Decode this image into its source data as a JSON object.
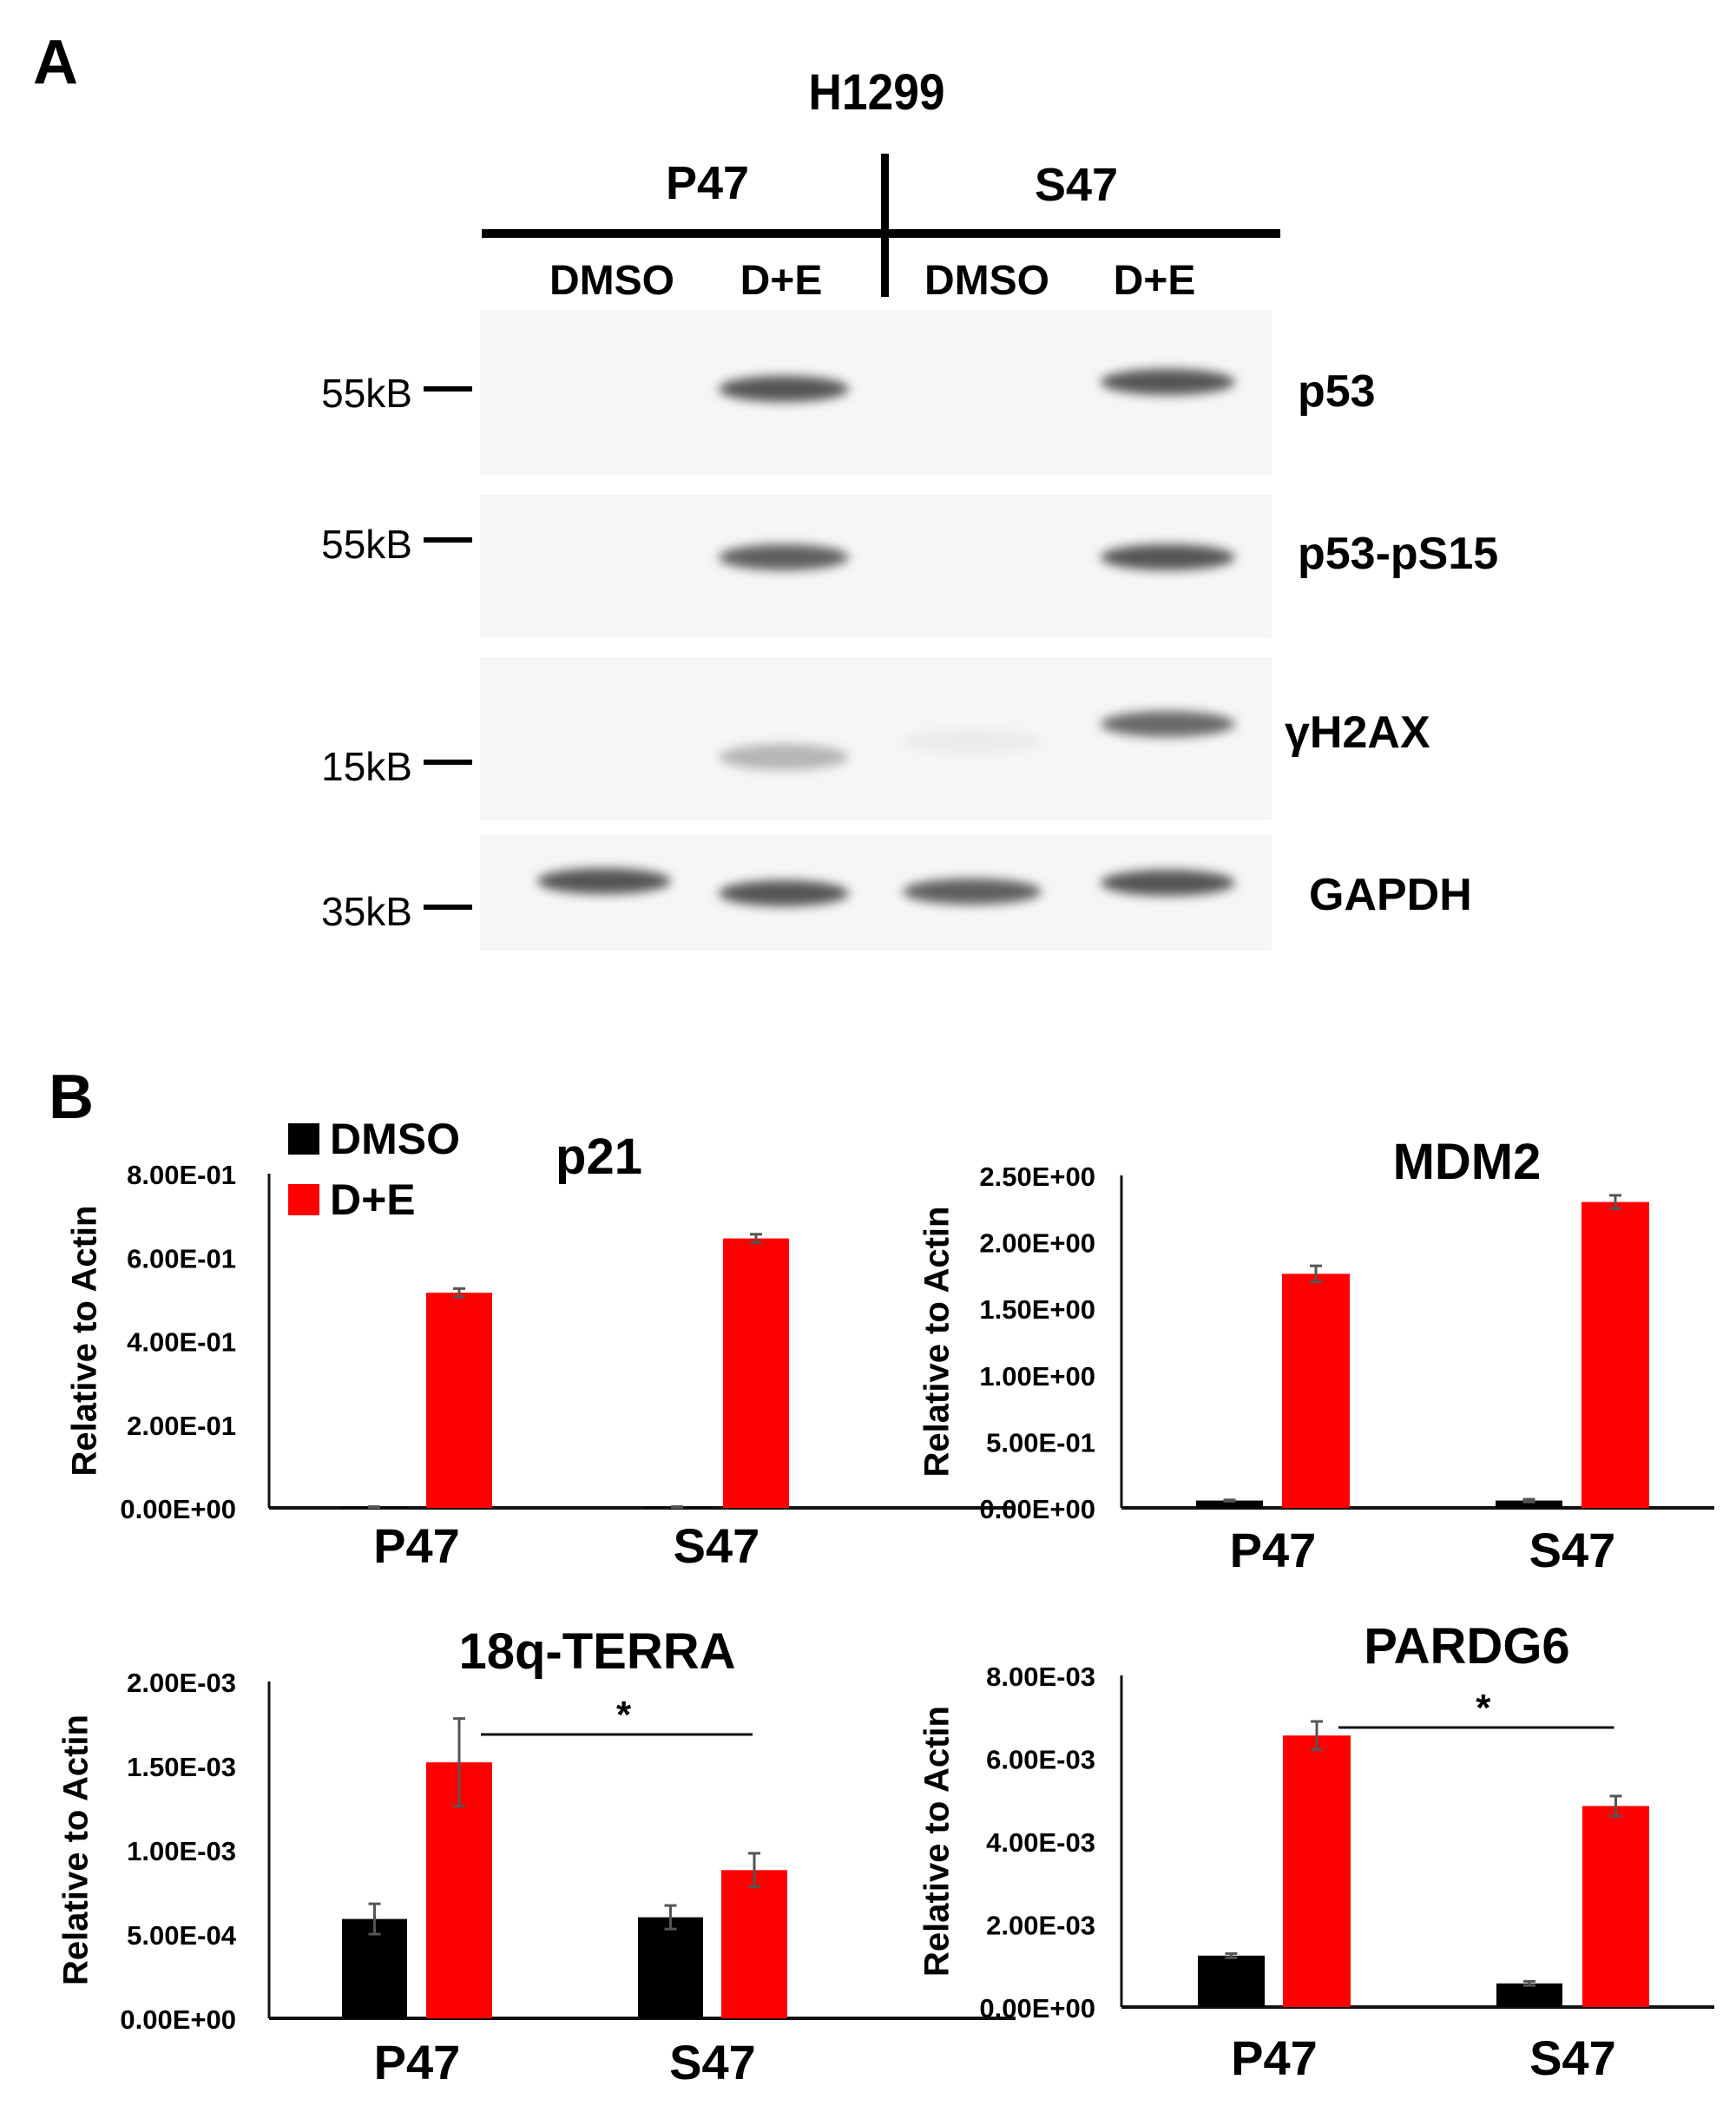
{
  "panel_a": {
    "letter": "A",
    "title": "H1299",
    "groups": [
      {
        "label": "P47"
      },
      {
        "label": "S47"
      }
    ],
    "lanes": [
      {
        "label": "DMSO"
      },
      {
        "label": "D+E"
      },
      {
        "label": "DMSO"
      },
      {
        "label": "D+E"
      }
    ],
    "blots": [
      {
        "protein": "p53",
        "marker": "55kB",
        "bands": [
          0,
          0.85,
          0,
          0.85
        ]
      },
      {
        "protein": "p53-pS15",
        "marker": "55kB",
        "bands": [
          0,
          0.8,
          0,
          0.85
        ]
      },
      {
        "protein": "γH2AX",
        "marker": "15kB",
        "bands": [
          0.03,
          0.45,
          0.15,
          0.75
        ]
      },
      {
        "protein": "GAPDH",
        "marker": "35kB",
        "bands": [
          0.85,
          0.85,
          0.8,
          0.85
        ]
      }
    ]
  },
  "panel_b": {
    "letter": "B",
    "legend": [
      {
        "label": "DMSO",
        "color": "#000000"
      },
      {
        "label": "D+E",
        "color": "#ff0000"
      }
    ]
  },
  "chart_data": [
    {
      "type": "bar",
      "title": "p21",
      "xlabel": "",
      "ylabel": "Relative to Actin",
      "categories": [
        "P47",
        "S47"
      ],
      "yticks": [
        "0.00E+00",
        "2.00E-01",
        "4.00E-01",
        "6.00E-01",
        "8.00E-01"
      ],
      "ylim": [
        0,
        0.8
      ],
      "grid": false,
      "series": [
        {
          "name": "DMSO",
          "color": "#000000",
          "values": [
            0.002,
            0.002
          ],
          "errors": [
            0.001,
            0.001
          ]
        },
        {
          "name": "D+E",
          "color": "#ff0000",
          "values": [
            0.515,
            0.645
          ],
          "errors": [
            0.01,
            0.01
          ]
        }
      ],
      "significance": null
    },
    {
      "type": "bar",
      "title": "MDM2",
      "xlabel": "",
      "ylabel": "Relative to Actin",
      "categories": [
        "P47",
        "S47"
      ],
      "yticks": [
        "0.00E+00",
        "5.00E-01",
        "1.00E+00",
        "1.50E+00",
        "2.00E+00",
        "2.50E+00"
      ],
      "ylim": [
        0,
        2.5
      ],
      "grid": false,
      "series": [
        {
          "name": "DMSO",
          "color": "#000000",
          "values": [
            0.055,
            0.055
          ],
          "errors": [
            0.005,
            0.01
          ]
        },
        {
          "name": "D+E",
          "color": "#ff0000",
          "values": [
            1.76,
            2.3
          ],
          "errors": [
            0.06,
            0.05
          ]
        }
      ],
      "significance": null
    },
    {
      "type": "bar",
      "title": "18q-TERRA",
      "xlabel": "",
      "ylabel": "Relative to Actin",
      "categories": [
        "P47",
        "S47"
      ],
      "yticks": [
        "0.00E+00",
        "5.00E-04",
        "1.00E-03",
        "1.50E-03",
        "2.00E-03"
      ],
      "ylim": [
        0,
        0.002
      ],
      "grid": false,
      "series": [
        {
          "name": "DMSO",
          "color": "#000000",
          "values": [
            0.00059,
            0.0006
          ],
          "errors": [
            9e-05,
            7e-05
          ]
        },
        {
          "name": "D+E",
          "color": "#ff0000",
          "values": [
            0.00152,
            0.00088
          ],
          "errors": [
            0.00026,
            0.0001
          ]
        }
      ],
      "significance": {
        "label": "*",
        "from": "P47 D+E",
        "to": "S47 D+E"
      }
    },
    {
      "type": "bar",
      "title": "PARDG6",
      "xlabel": "",
      "ylabel": "Relative to Actin",
      "categories": [
        "P47",
        "S47"
      ],
      "yticks": [
        "0.00E+00",
        "2.00E-03",
        "4.00E-03",
        "6.00E-03",
        "8.00E-03"
      ],
      "ylim": [
        0,
        0.008
      ],
      "grid": false,
      "series": [
        {
          "name": "DMSO",
          "color": "#000000",
          "values": [
            0.00124,
            0.00057
          ],
          "errors": [
            5e-05,
            5e-05
          ]
        },
        {
          "name": "D+E",
          "color": "#ff0000",
          "values": [
            0.00655,
            0.00485
          ],
          "errors": [
            0.00034,
            0.00024
          ]
        }
      ],
      "significance": {
        "label": "*",
        "from": "P47 D+E",
        "to": "S47 D+E"
      }
    }
  ]
}
